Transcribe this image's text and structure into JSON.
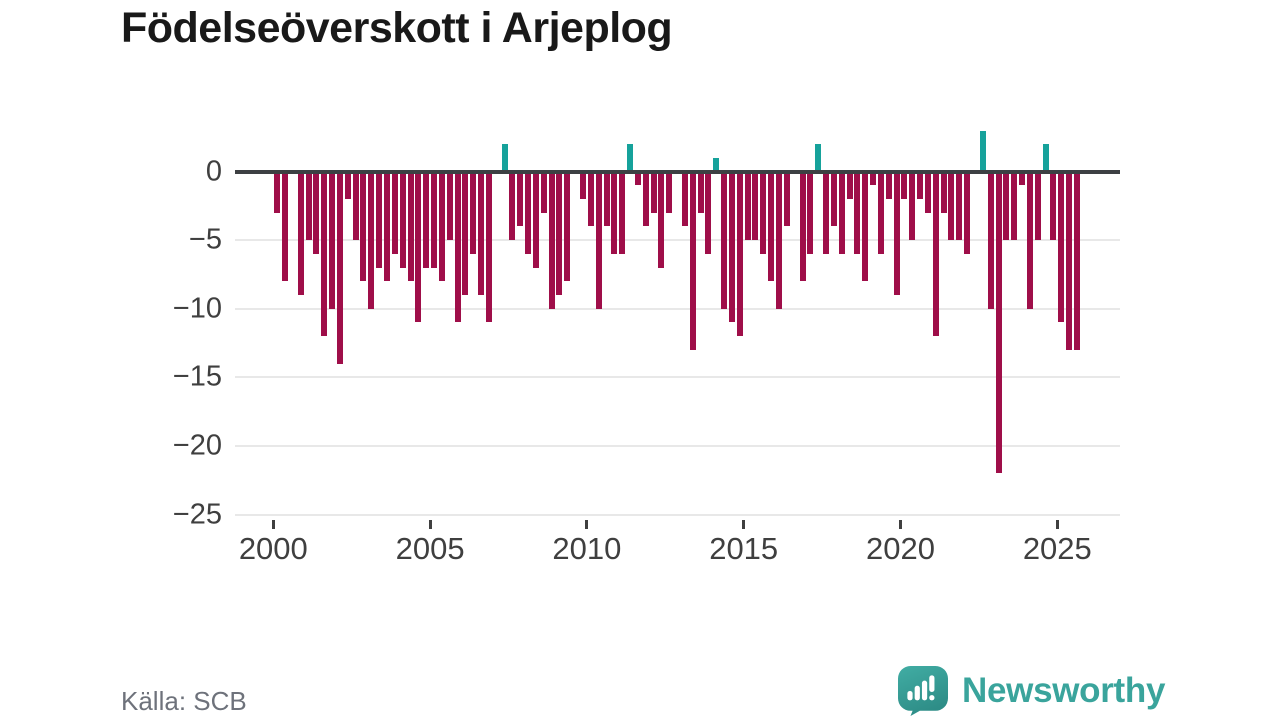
{
  "title": "Födelseöverskott i Arjeplog",
  "source": "Källa: SCB",
  "branding": {
    "name": "Newsworthy",
    "logo_icon": "speech-bubble-bar-chart-icon",
    "brand_color": "#3aa49c",
    "bubble_color_top": "#41ada4",
    "bubble_color_bottom": "#2e8d87"
  },
  "colors": {
    "negative_bar": "#9f0e49",
    "positive_bar": "#16a29b",
    "baseline": "#3d4043",
    "gridline": "#e8e8e8",
    "title_text": "#191919",
    "axis_text": "#3f3f3f",
    "source_text": "#6e727b"
  },
  "chart_data": {
    "type": "bar",
    "title": "Födelseöverskott i Arjeplog",
    "series_name": "Födelseöverskott",
    "frequency": "quarterly",
    "start": "2000-Q1",
    "end": "2025-Q3",
    "xlabel": "",
    "ylabel": "",
    "xticks": [
      2000,
      2005,
      2010,
      2015,
      2020,
      2025
    ],
    "yticks": [
      0,
      -5,
      -10,
      -15,
      -20,
      -25
    ],
    "ylim": [
      -25.5,
      3.2
    ],
    "grid": "horizontal-light",
    "legend": "none",
    "values_by_year": {
      "2000": [
        -3,
        -8,
        0,
        -9
      ],
      "2001": [
        -5,
        -6,
        -12,
        -10
      ],
      "2002": [
        -14,
        -2,
        -5,
        -8
      ],
      "2003": [
        -10,
        -7,
        -8,
        -6
      ],
      "2004": [
        -7,
        -8,
        -11,
        -7
      ],
      "2005": [
        -7,
        -8,
        -5,
        -11
      ],
      "2006": [
        -9,
        -6,
        -9,
        -11
      ],
      "2007": [
        0,
        2,
        -5,
        -4
      ],
      "2008": [
        -6,
        -7,
        -3,
        -10
      ],
      "2009": [
        -9,
        -8,
        0,
        -2
      ],
      "2010": [
        -4,
        -10,
        -4,
        -6
      ],
      "2011": [
        -6,
        2,
        -1,
        -4
      ],
      "2012": [
        -3,
        -7,
        -3,
        0
      ],
      "2013": [
        -4,
        -13,
        -3,
        -6
      ],
      "2014": [
        1,
        -10,
        -11,
        -12
      ],
      "2015": [
        -5,
        -5,
        -6,
        -8
      ],
      "2016": [
        -10,
        -4,
        0,
        -8
      ],
      "2017": [
        -6,
        2,
        -6,
        -4
      ],
      "2018": [
        -6,
        -2,
        -6,
        -8
      ],
      "2019": [
        -1,
        -6,
        -2,
        -9
      ],
      "2020": [
        -2,
        -5,
        -2,
        -3
      ],
      "2021": [
        -12,
        -3,
        -5,
        -5
      ],
      "2022": [
        -6,
        0,
        3,
        -10
      ],
      "2023": [
        -22,
        -5,
        -5,
        -1
      ],
      "2024": [
        -10,
        -5,
        2,
        -5
      ],
      "2025": [
        -11,
        -13,
        -13
      ]
    }
  }
}
